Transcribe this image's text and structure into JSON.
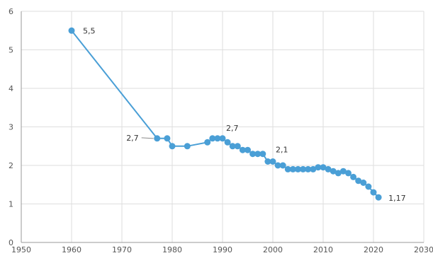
{
  "chart_data": {
    "type": "line",
    "title": "",
    "xlabel": "",
    "ylabel": "",
    "xlim": [
      1950,
      2030
    ],
    "ylim": [
      0,
      6
    ],
    "xticks": [
      "1950",
      "1960",
      "1970",
      "1980",
      "1990",
      "2000",
      "2010",
      "2020",
      "2030"
    ],
    "yticks": [
      "0",
      "1",
      "2",
      "3",
      "4",
      "5",
      "6"
    ],
    "grid": true,
    "color": "#4a9fd6",
    "series": [
      {
        "x": [
          1960,
          1977,
          1979,
          1980,
          1983,
          1987,
          1988,
          1989,
          1990,
          1991,
          1992,
          1993,
          1994,
          1995,
          1996,
          1997,
          1998,
          1999,
          2000,
          2001,
          2002,
          2003,
          2004,
          2005,
          2006,
          2007,
          2008,
          2009,
          2010,
          2011,
          2012,
          2013,
          2014,
          2015,
          2016,
          2017,
          2018,
          2019,
          2020,
          2021
        ],
        "y": [
          5.5,
          2.7,
          2.7,
          2.5,
          2.5,
          2.6,
          2.7,
          2.7,
          2.7,
          2.6,
          2.5,
          2.5,
          2.4,
          2.4,
          2.3,
          2.3,
          2.3,
          2.1,
          2.1,
          2.0,
          2.0,
          1.9,
          1.9,
          1.9,
          1.9,
          1.9,
          1.9,
          1.95,
          1.95,
          1.9,
          1.85,
          1.8,
          1.85,
          1.8,
          1.7,
          1.6,
          1.55,
          1.45,
          1.3,
          1.17
        ]
      }
    ],
    "annotations": [
      {
        "text": "5,5",
        "x": 1960,
        "y": 5.5
      },
      {
        "text": "2,7",
        "x": 1977,
        "y": 2.7
      },
      {
        "text": "2,7",
        "x": 1990,
        "y": 2.7
      },
      {
        "text": "2,1",
        "x": 2000,
        "y": 2.1
      },
      {
        "text": "1,17",
        "x": 2021,
        "y": 1.17
      }
    ]
  }
}
